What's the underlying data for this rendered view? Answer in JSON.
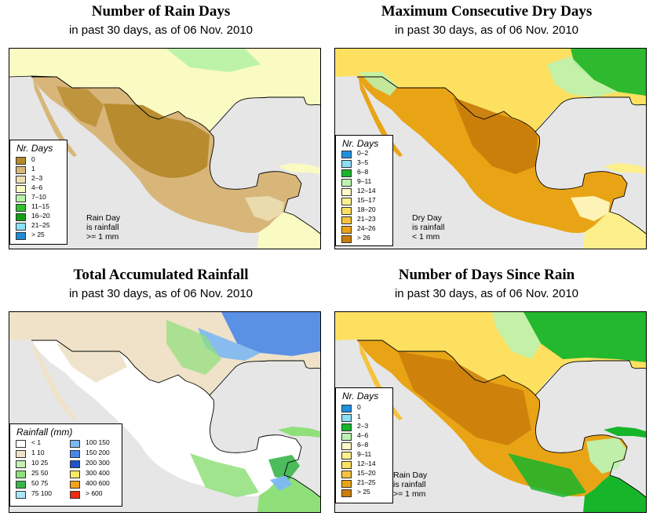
{
  "panels": [
    {
      "title": "Number of Rain Days",
      "subtitle": "in past 30 days, as of 06 Nov. 2010",
      "legend": {
        "title": "Nr. Days",
        "items": [
          {
            "label": "0",
            "color": "#b5892a"
          },
          {
            "label": "1",
            "color": "#d8b67a"
          },
          {
            "label": "2–3",
            "color": "#ecdfb2"
          },
          {
            "label": "4–6",
            "color": "#fafac3"
          },
          {
            "label": "7–10",
            "color": "#b6f2a6"
          },
          {
            "label": "11–15",
            "color": "#2ec02e"
          },
          {
            "label": "16–20",
            "color": "#12a012"
          },
          {
            "label": "21–25",
            "color": "#8de2f5"
          },
          {
            "label": "> 25",
            "color": "#1e8ad8"
          }
        ]
      },
      "note": [
        "Rain Day",
        "is rainfall",
        ">= 1 mm"
      ]
    },
    {
      "title": "Maximum Consecutive Dry Days",
      "subtitle": "in past 30 days, as of 06 Nov. 2010",
      "legend": {
        "title": "Nr. Days",
        "items": [
          {
            "label": "0–2",
            "color": "#1e90e0"
          },
          {
            "label": "3–5",
            "color": "#8cdef5"
          },
          {
            "label": "6–8",
            "color": "#17b52a"
          },
          {
            "label": "9–11",
            "color": "#bdf3b0"
          },
          {
            "label": "12–14",
            "color": "#fffcc8"
          },
          {
            "label": "15–17",
            "color": "#fdf08c"
          },
          {
            "label": "18–20",
            "color": "#fde060"
          },
          {
            "label": "21–23",
            "color": "#f5c23c"
          },
          {
            "label": "24–26",
            "color": "#e9a416"
          },
          {
            "label": "> 26",
            "color": "#c97d0b"
          }
        ]
      },
      "note": [
        "Dry Day",
        "is rainfall",
        "< 1 mm"
      ]
    },
    {
      "title": "Total Accumulated Rainfall",
      "subtitle": "in past 30 days, as of 06 Nov. 2010",
      "legend": {
        "title": "Rainfall (mm)",
        "items": [
          {
            "label": "< 1",
            "color": "#ffffff"
          },
          {
            "label": "1   10",
            "color": "#efe2c8"
          },
          {
            "label": "10   25",
            "color": "#c4f1b2"
          },
          {
            "label": "25   50",
            "color": "#8fe07a"
          },
          {
            "label": "50   75",
            "color": "#39b54a"
          },
          {
            "label": "75   100",
            "color": "#a9e6f7"
          },
          {
            "label": "100   150",
            "color": "#7cb8f2"
          },
          {
            "label": "150   200",
            "color": "#4a88e8"
          },
          {
            "label": "200   300",
            "color": "#1f55c9"
          },
          {
            "label": "300   400",
            "color": "#fde968"
          },
          {
            "label": "400   600",
            "color": "#f4a21c"
          },
          {
            "label": "> 600",
            "color": "#ee2c0f"
          }
        ]
      }
    },
    {
      "title": "Number of Days Since Rain",
      "subtitle": "in past 30 days, as of 06 Nov. 2010",
      "legend": {
        "title": "Nr. Days",
        "items": [
          {
            "label": "0",
            "color": "#1e90e0"
          },
          {
            "label": "1",
            "color": "#8cdef5"
          },
          {
            "label": "2–3",
            "color": "#17b52a"
          },
          {
            "label": "4–6",
            "color": "#bdf3b0"
          },
          {
            "label": "6–8",
            "color": "#fffcc8"
          },
          {
            "label": "9–11",
            "color": "#fdf08c"
          },
          {
            "label": "12–14",
            "color": "#fde060"
          },
          {
            "label": "15–20",
            "color": "#f5c23c"
          },
          {
            "label": "21–25",
            "color": "#e9a416"
          },
          {
            "label": "> 25",
            "color": "#c97d0b"
          }
        ]
      },
      "note": [
        "Rain Day",
        "is rainfall",
        ">= 1 mm"
      ]
    }
  ],
  "palette": {
    "ocean": "#e6e6e6",
    "border": "#000000"
  }
}
